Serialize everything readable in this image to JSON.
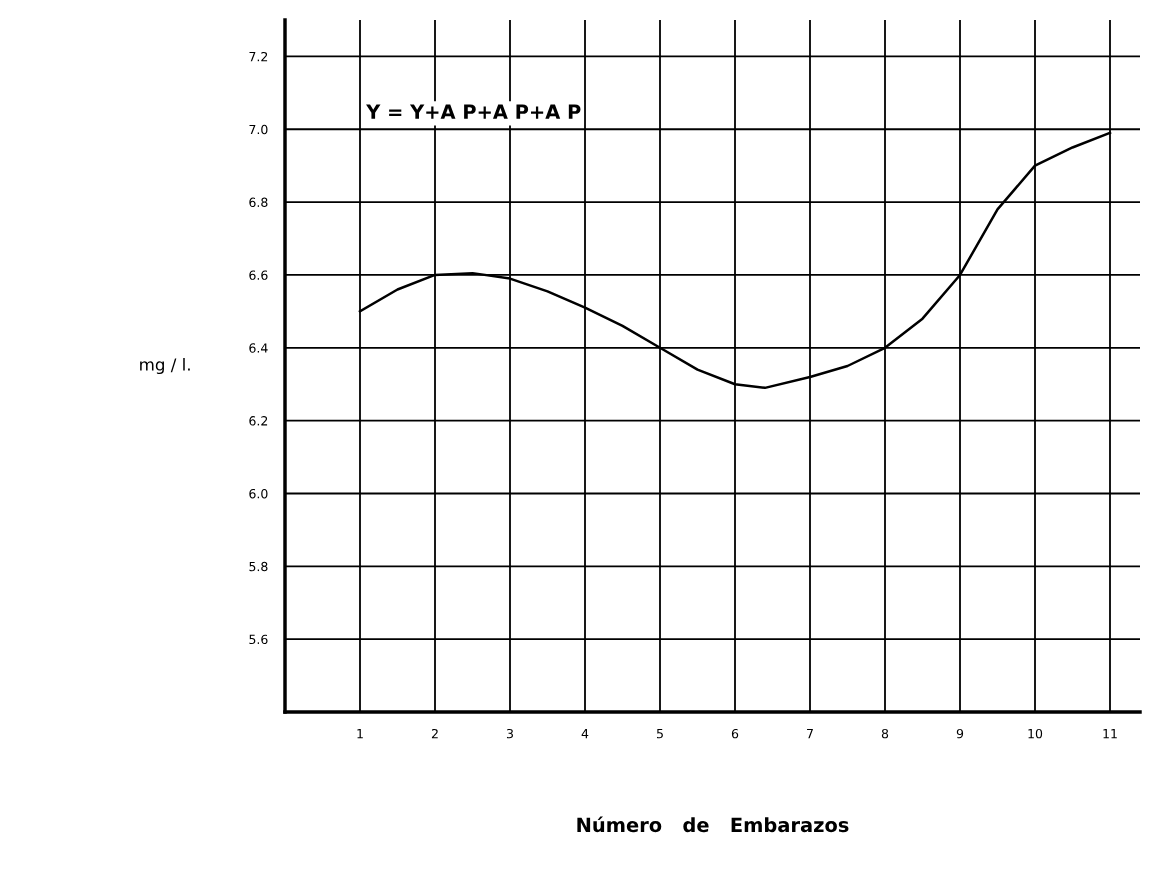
{
  "chart_data": {
    "type": "line",
    "xlabel": "Número   de   Embarazos",
    "ylabel": "mg / l.",
    "annotations": [
      "Y = Y+A P+A P+A P"
    ],
    "x": [
      1,
      1.5,
      2,
      2.5,
      3,
      3.5,
      4,
      4.5,
      5,
      5.5,
      6,
      6.4,
      7,
      7.5,
      8,
      8.5,
      9,
      9.5,
      10,
      10.5,
      11
    ],
    "series": [
      {
        "color": "#000000",
        "values": [
          6.5,
          6.56,
          6.6,
          6.605,
          6.59,
          6.555,
          6.51,
          6.46,
          6.4,
          6.34,
          6.3,
          6.29,
          6.32,
          6.35,
          6.4,
          6.48,
          6.6,
          6.78,
          6.9,
          6.95,
          6.99
        ]
      }
    ],
    "xlim": [
      0,
      11.4
    ],
    "ylim": [
      5.4,
      7.3
    ],
    "xticks": [
      1,
      2,
      3,
      4,
      5,
      6,
      7,
      8,
      9,
      10,
      11
    ],
    "yticks": [
      5.6,
      5.8,
      {
        "value": 6.0,
        "label": "6.0"
      },
      6.2,
      6.4,
      6.6,
      6.8,
      {
        "value": 7.0,
        "label": "7.0"
      },
      7.2
    ],
    "grid": true,
    "marker": "none",
    "line_style": "solid"
  }
}
